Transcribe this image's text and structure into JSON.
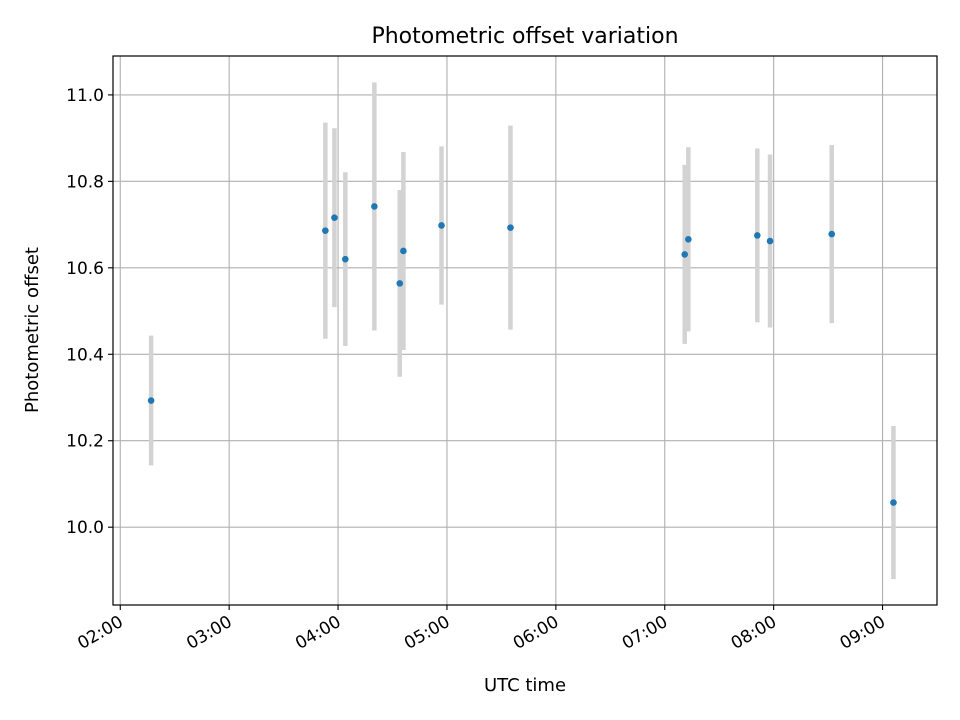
{
  "chart_data": {
    "type": "scatter",
    "title": "Photometric offset variation",
    "xlabel": "UTC time",
    "ylabel": "Photometric offset",
    "x_ticks": [
      "02:00",
      "03:00",
      "04:00",
      "05:00",
      "06:00",
      "07:00",
      "08:00",
      "09:00"
    ],
    "y_ticks": [
      "10.0",
      "10.2",
      "10.4",
      "10.6",
      "10.8",
      "11.0"
    ],
    "xlim": [
      "01:56",
      "09:30"
    ],
    "ylim": [
      9.82,
      11.09
    ],
    "grid": true,
    "marker_color": "#1f77b4",
    "errorbar_color": "#d3d3d3",
    "points": [
      {
        "x": "02:17",
        "y": 10.293,
        "yerr_low": 10.143,
        "yerr_high": 10.443
      },
      {
        "x": "03:53",
        "y": 10.686,
        "yerr_low": 10.436,
        "yerr_high": 10.936
      },
      {
        "x": "03:58",
        "y": 10.716,
        "yerr_low": 10.509,
        "yerr_high": 10.923
      },
      {
        "x": "04:04",
        "y": 10.62,
        "yerr_low": 10.419,
        "yerr_high": 10.821
      },
      {
        "x": "04:20",
        "y": 10.742,
        "yerr_low": 10.455,
        "yerr_high": 11.029
      },
      {
        "x": "04:34",
        "y": 10.564,
        "yerr_low": 10.348,
        "yerr_high": 10.78
      },
      {
        "x": "04:36",
        "y": 10.639,
        "yerr_low": 10.41,
        "yerr_high": 10.868
      },
      {
        "x": "04:57",
        "y": 10.698,
        "yerr_low": 10.515,
        "yerr_high": 10.881
      },
      {
        "x": "05:35",
        "y": 10.693,
        "yerr_low": 10.457,
        "yerr_high": 10.929
      },
      {
        "x": "07:11",
        "y": 10.631,
        "yerr_low": 10.424,
        "yerr_high": 10.838
      },
      {
        "x": "07:13",
        "y": 10.666,
        "yerr_low": 10.453,
        "yerr_high": 10.879
      },
      {
        "x": "07:51",
        "y": 10.675,
        "yerr_low": 10.474,
        "yerr_high": 10.876
      },
      {
        "x": "07:58",
        "y": 10.662,
        "yerr_low": 10.462,
        "yerr_high": 10.862
      },
      {
        "x": "08:32",
        "y": 10.678,
        "yerr_low": 10.472,
        "yerr_high": 10.884
      },
      {
        "x": "09:06",
        "y": 10.057,
        "yerr_low": 9.88,
        "yerr_high": 10.234
      }
    ]
  }
}
